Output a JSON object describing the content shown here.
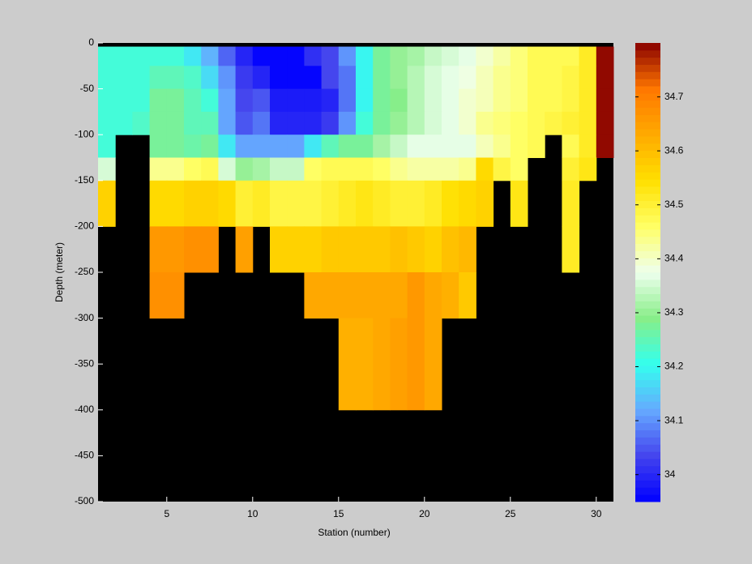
{
  "chart_data": {
    "type": "heatmap",
    "xlabel": "Station (number)",
    "ylabel": "Depth (meter)",
    "xlim": [
      1,
      31
    ],
    "ylim": [
      -500,
      0
    ],
    "xticks": [
      5,
      10,
      15,
      20,
      25,
      30
    ],
    "yticks": [
      0,
      -50,
      -100,
      -150,
      -200,
      -250,
      -300,
      -350,
      -400,
      -450,
      -500
    ],
    "xbins": [
      1,
      2,
      3,
      4,
      5,
      6,
      7,
      8,
      9,
      10,
      11,
      12,
      13,
      14,
      15,
      16,
      17,
      18,
      19,
      20,
      21,
      22,
      23,
      24,
      25,
      26,
      27,
      28,
      29,
      30,
      31
    ],
    "ybins": [
      -4,
      -25,
      -50,
      -75,
      -100,
      -125,
      -150,
      -200,
      -250,
      -300,
      -400
    ],
    "values": [
      [
        34.22,
        34.22,
        34.22,
        34.22,
        34.22,
        34.18,
        34.13,
        34.06,
        34.0,
        33.96,
        33.96,
        33.96,
        34.01,
        34.04,
        34.1,
        34.2,
        34.27,
        34.3,
        34.32,
        34.34,
        34.36,
        34.37,
        34.4,
        34.42,
        34.45,
        34.47,
        34.48,
        34.48,
        34.52,
        34.8
      ],
      [
        34.22,
        34.22,
        34.22,
        34.25,
        34.25,
        34.23,
        34.17,
        34.1,
        34.02,
        34.0,
        33.96,
        33.96,
        33.96,
        34.03,
        34.08,
        34.2,
        34.28,
        34.3,
        34.33,
        34.36,
        34.37,
        34.38,
        34.41,
        34.43,
        34.45,
        34.47,
        34.48,
        34.49,
        34.52,
        34.8
      ],
      [
        34.22,
        34.22,
        34.22,
        34.27,
        34.27,
        34.25,
        34.22,
        34.12,
        34.03,
        34.05,
        33.98,
        33.98,
        33.98,
        34.0,
        34.08,
        34.2,
        34.28,
        34.29,
        34.33,
        34.35,
        34.37,
        34.39,
        34.41,
        34.43,
        34.45,
        34.47,
        34.48,
        34.49,
        34.52,
        34.8
      ],
      [
        34.22,
        34.22,
        34.24,
        34.28,
        34.28,
        34.25,
        34.25,
        34.12,
        34.05,
        34.07,
        33.99,
        33.99,
        33.99,
        34.02,
        34.1,
        34.22,
        34.28,
        34.3,
        34.33,
        34.36,
        34.37,
        34.4,
        34.43,
        34.45,
        34.46,
        34.47,
        34.49,
        34.5,
        34.52,
        34.8
      ],
      [
        34.22,
        null,
        null,
        34.28,
        34.28,
        34.26,
        34.27,
        34.18,
        34.12,
        34.12,
        34.12,
        34.12,
        34.18,
        34.25,
        34.27,
        34.27,
        34.32,
        34.34,
        34.37,
        34.37,
        34.37,
        34.37,
        34.41,
        34.43,
        34.46,
        34.47,
        null,
        34.48,
        34.52,
        34.8
      ],
      [
        34.35,
        null,
        null,
        34.44,
        34.44,
        34.46,
        34.47,
        34.36,
        34.3,
        34.32,
        34.34,
        34.34,
        34.46,
        34.48,
        34.47,
        34.47,
        34.46,
        34.44,
        34.42,
        34.42,
        34.42,
        34.44,
        34.55,
        34.49,
        34.46,
        null,
        null,
        34.5,
        34.53,
        null
      ],
      [
        34.57,
        null,
        null,
        34.56,
        34.56,
        34.57,
        34.57,
        34.55,
        34.5,
        34.52,
        34.49,
        34.49,
        34.49,
        34.5,
        34.52,
        34.53,
        34.52,
        34.5,
        34.5,
        34.52,
        34.54,
        34.56,
        34.57,
        null,
        34.53,
        null,
        null,
        34.51,
        null,
        null
      ],
      [
        null,
        null,
        null,
        34.66,
        34.66,
        34.67,
        34.67,
        null,
        34.65,
        null,
        34.57,
        34.57,
        34.57,
        34.58,
        34.58,
        34.58,
        34.58,
        34.59,
        34.58,
        34.57,
        34.6,
        34.61,
        null,
        null,
        null,
        null,
        null,
        34.52,
        null,
        null
      ],
      [
        null,
        null,
        null,
        34.68,
        34.68,
        null,
        null,
        null,
        null,
        null,
        null,
        null,
        34.64,
        34.64,
        34.63,
        34.63,
        34.64,
        34.64,
        34.66,
        34.64,
        34.62,
        34.58,
        null,
        null,
        null,
        null,
        null,
        null,
        null,
        null
      ],
      [
        null,
        null,
        null,
        null,
        null,
        null,
        null,
        null,
        null,
        null,
        null,
        null,
        null,
        null,
        34.62,
        34.62,
        34.63,
        34.65,
        34.66,
        34.64,
        null,
        null,
        null,
        null,
        null,
        null,
        null,
        null,
        null,
        null
      ]
    ],
    "clim": [
      33.95,
      34.8
    ],
    "cticks": [
      34,
      34.1,
      34.2,
      34.3,
      34.4,
      34.5,
      34.6,
      34.7
    ],
    "colormap_levels": 64,
    "colormap": [
      "#0000ff",
      "#4444ee",
      "#66aaff",
      "#33ffee",
      "#88ee88",
      "#eeffee",
      "#ffff66",
      "#ffe000",
      "#ffaa00",
      "#ff7700",
      "#880000"
    ],
    "nan_color": "#000000"
  }
}
